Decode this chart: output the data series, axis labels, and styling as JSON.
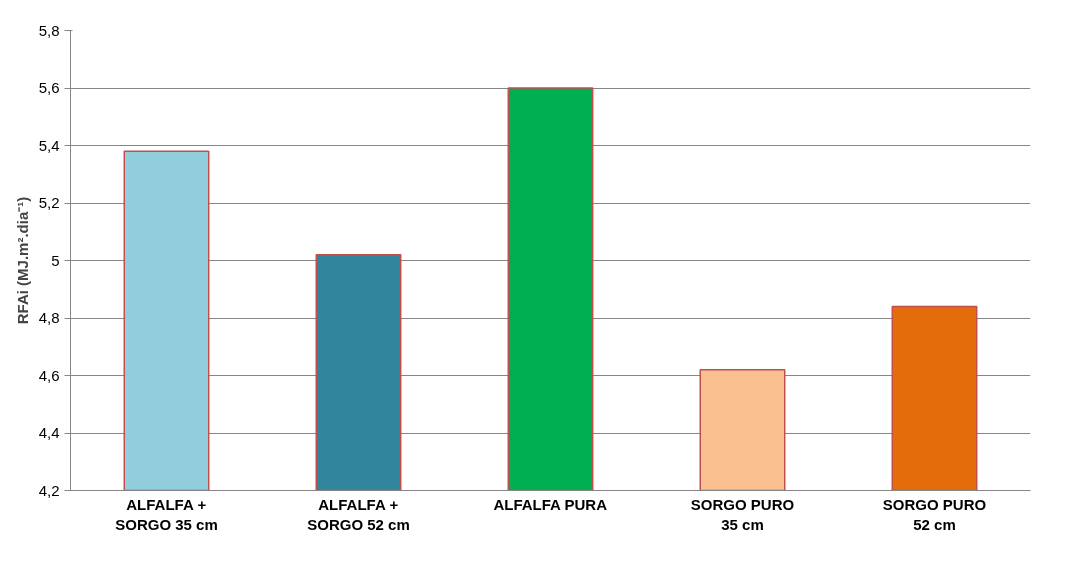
{
  "chart_data": {
    "type": "bar",
    "ylabel": "RFAi (MJ.m².dia⁻¹)",
    "categories": [
      "ALFALFA +\nSORGO 35 cm",
      "ALFALFA +\nSORGO 52 cm",
      "ALFALFA PURA",
      "SORGO PURO\n35 cm",
      "SORGO PURO\n52 cm"
    ],
    "values": [
      5.38,
      5.02,
      5.6,
      4.62,
      4.84
    ],
    "colors": [
      "#92cddc",
      "#31859c",
      "#00b050",
      "#fac090",
      "#e46c0a"
    ],
    "ylim": [
      4.2,
      5.8
    ],
    "yticks": [
      {
        "value": 4.2,
        "label": "4,2"
      },
      {
        "value": 4.4,
        "label": "4,4"
      },
      {
        "value": 4.6,
        "label": "4,6"
      },
      {
        "value": 4.8,
        "label": "4,8"
      },
      5,
      {
        "value": 5.2,
        "label": "5,2"
      },
      {
        "value": 5.4,
        "label": "5,4"
      },
      {
        "value": 5.6,
        "label": "5,6"
      },
      {
        "value": 5.8,
        "label": "5,8"
      }
    ],
    "grid": "y"
  }
}
